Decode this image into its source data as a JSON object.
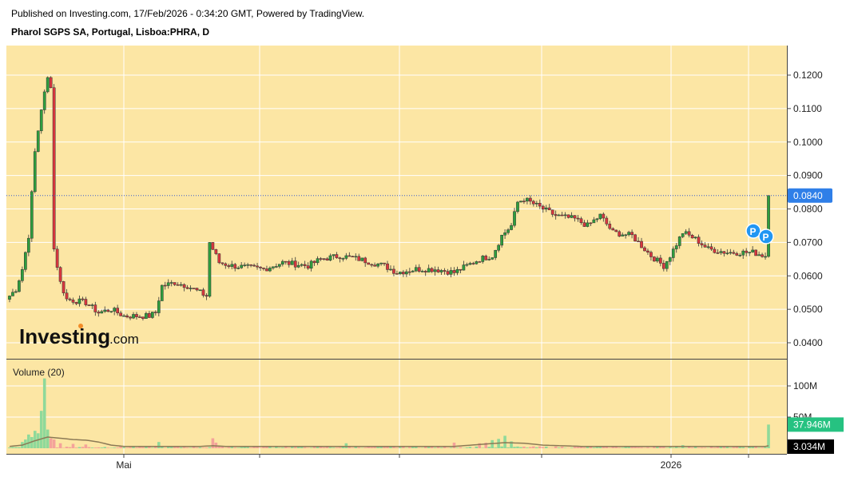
{
  "header": {
    "published": "Published on Investing.com, 17/Feb/2026 - 0:34:20 GMT, Powered by TradingView.",
    "symbol": "Pharol SGPS SA, Portugal, Lisboa:PHRA, D"
  },
  "logo": {
    "main": "Investing",
    "suffix": ".com"
  },
  "volume_label": "Volume (20)",
  "price_axis": {
    "ticks": [
      "0.1200",
      "0.1100",
      "0.1000",
      "0.0900",
      "0.0800",
      "0.0700",
      "0.0600",
      "0.0500",
      "0.0400"
    ],
    "last_price": "0.0840"
  },
  "volume_axis": {
    "ticks": [
      "100M",
      "50M"
    ],
    "last_volume": "37.946M",
    "volume_ma": "3.034M"
  },
  "x_axis": {
    "labels": [
      "Mai",
      "2026"
    ]
  },
  "markers": [
    "P",
    "P"
  ],
  "colors": {
    "background": "#fce6a4",
    "up": "#2e9e3e",
    "down": "#d9363e",
    "last_price_badge": "#2f7fe8",
    "volume_badge": "#26c281",
    "volume_ma_badge": "#000000",
    "volume_ma_line": "#8c7a56",
    "marker": "#2196f3"
  },
  "chart_data": {
    "type": "candlestick",
    "y_range": [
      0.035,
      0.125
    ],
    "volume_range": [
      0,
      130
    ],
    "volume_unit": "M",
    "price_anchors": [
      [
        0,
        0.054
      ],
      [
        2,
        0.056
      ],
      [
        4,
        0.062
      ],
      [
        6,
        0.072
      ],
      [
        8,
        0.097
      ],
      [
        10,
        0.11
      ],
      [
        12,
        0.119
      ],
      [
        13,
        0.117
      ],
      [
        14,
        0.068
      ],
      [
        16,
        0.058
      ],
      [
        18,
        0.053
      ],
      [
        24,
        0.052
      ],
      [
        28,
        0.049
      ],
      [
        32,
        0.05
      ],
      [
        36,
        0.048
      ],
      [
        40,
        0.048
      ],
      [
        44,
        0.048
      ],
      [
        46,
        0.049
      ],
      [
        48,
        0.057
      ],
      [
        52,
        0.058
      ],
      [
        56,
        0.057
      ],
      [
        60,
        0.055
      ],
      [
        62,
        0.054
      ],
      [
        63,
        0.07
      ],
      [
        66,
        0.064
      ],
      [
        70,
        0.063
      ],
      [
        80,
        0.062
      ],
      [
        86,
        0.064
      ],
      [
        94,
        0.063
      ],
      [
        98,
        0.065
      ],
      [
        104,
        0.066
      ],
      [
        110,
        0.065
      ],
      [
        118,
        0.063
      ],
      [
        122,
        0.061
      ],
      [
        128,
        0.062
      ],
      [
        134,
        0.062
      ],
      [
        140,
        0.061
      ],
      [
        144,
        0.063
      ],
      [
        148,
        0.065
      ],
      [
        152,
        0.066
      ],
      [
        155,
        0.072
      ],
      [
        158,
        0.075
      ],
      [
        160,
        0.082
      ],
      [
        162,
        0.083
      ],
      [
        168,
        0.08
      ],
      [
        172,
        0.078
      ],
      [
        178,
        0.077
      ],
      [
        182,
        0.075
      ],
      [
        186,
        0.078
      ],
      [
        190,
        0.073
      ],
      [
        196,
        0.072
      ],
      [
        202,
        0.066
      ],
      [
        206,
        0.063
      ],
      [
        208,
        0.066
      ],
      [
        212,
        0.073
      ],
      [
        216,
        0.071
      ],
      [
        220,
        0.068
      ],
      [
        226,
        0.067
      ],
      [
        234,
        0.067
      ],
      [
        238,
        0.066
      ],
      [
        239,
        0.084
      ]
    ],
    "volume_spikes": [
      [
        4,
        10
      ],
      [
        5,
        14
      ],
      [
        6,
        22
      ],
      [
        7,
        18
      ],
      [
        8,
        28
      ],
      [
        9,
        24
      ],
      [
        10,
        60
      ],
      [
        11,
        112
      ],
      [
        12,
        30
      ],
      [
        13,
        16
      ],
      [
        14,
        14
      ],
      [
        16,
        8
      ],
      [
        20,
        7
      ],
      [
        24,
        6
      ],
      [
        47,
        10
      ],
      [
        64,
        16
      ],
      [
        65,
        9
      ],
      [
        106,
        8
      ],
      [
        140,
        9
      ],
      [
        148,
        8
      ],
      [
        150,
        9
      ],
      [
        152,
        13
      ],
      [
        154,
        15
      ],
      [
        156,
        20
      ],
      [
        158,
        11
      ],
      [
        212,
        5
      ],
      [
        239,
        38
      ]
    ],
    "volume_ma_anchors": [
      [
        0,
        3
      ],
      [
        4,
        5
      ],
      [
        8,
        12
      ],
      [
        12,
        18
      ],
      [
        16,
        16
      ],
      [
        20,
        14
      ],
      [
        24,
        13
      ],
      [
        28,
        10
      ],
      [
        32,
        5
      ],
      [
        36,
        3
      ],
      [
        60,
        3
      ],
      [
        64,
        4
      ],
      [
        68,
        3
      ],
      [
        100,
        3
      ],
      [
        140,
        3
      ],
      [
        148,
        6
      ],
      [
        156,
        9
      ],
      [
        162,
        8
      ],
      [
        168,
        5
      ],
      [
        180,
        3
      ],
      [
        230,
        3
      ],
      [
        238,
        3
      ],
      [
        239,
        4
      ]
    ],
    "last_price": 0.084,
    "last_volume": 37.946,
    "volume_ma": 3.034
  }
}
